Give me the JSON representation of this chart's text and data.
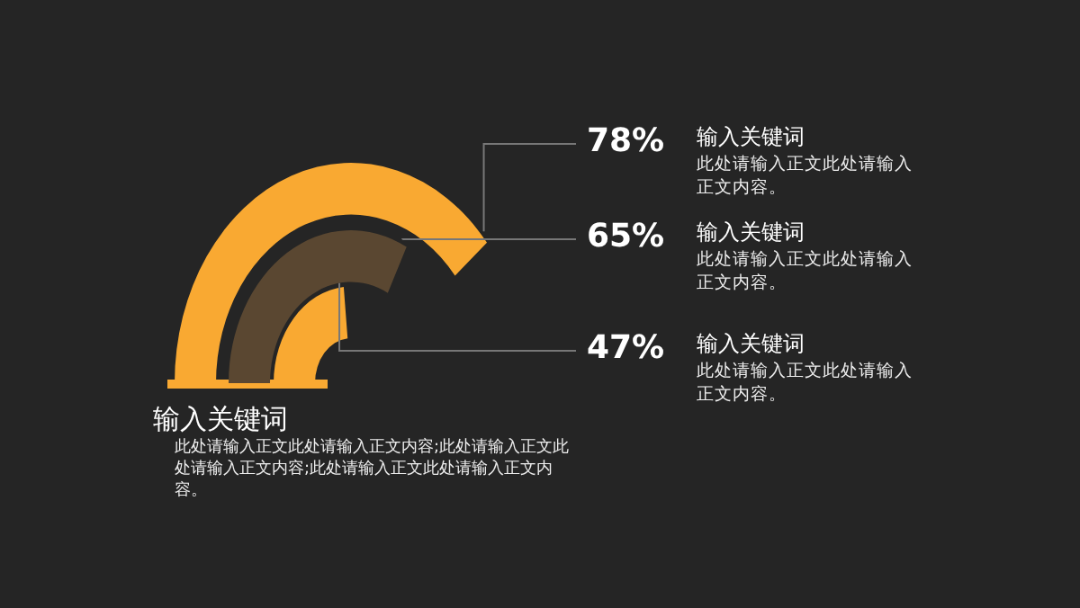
{
  "chart_data": {
    "type": "other",
    "title": "输入关键词",
    "subtitle": "此处请输入正文此处请输入正文内容;此处请输入正文此处请输入正文内容;此处请输入正文此处请输入正文内容。",
    "categories": [
      "输入关键词",
      "输入关键词",
      "输入关键词"
    ],
    "values": [
      78,
      65,
      47
    ],
    "value_labels": [
      "78%",
      "65%",
      "47%"
    ],
    "colors": [
      "#f9a932",
      "#5a4731",
      "#f9a932"
    ],
    "annotations": [
      "此处请输入正文此处请输入正文内容。",
      "此处请输入正文此处请输入正文内容。",
      "此处请输入正文此处请输入正文内容。"
    ]
  }
}
